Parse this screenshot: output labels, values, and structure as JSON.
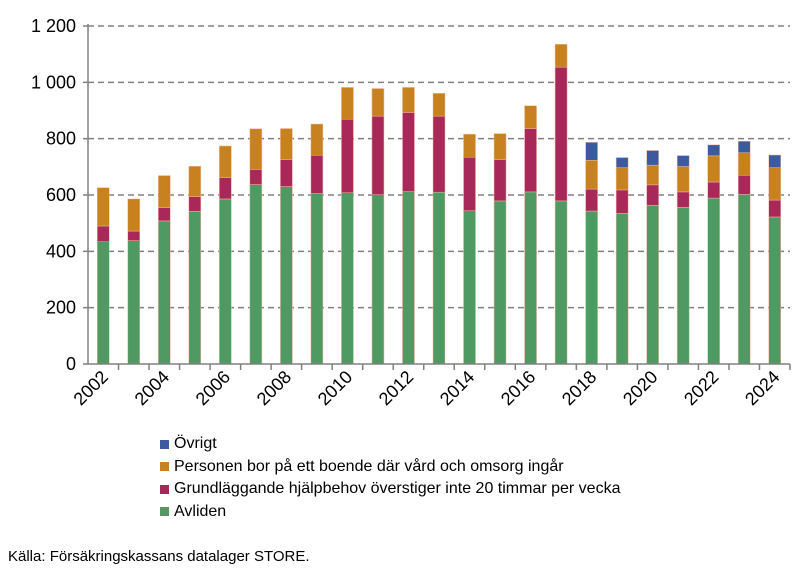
{
  "chart_data": {
    "type": "bar",
    "stacked": true,
    "categories": [
      "2002",
      "2003",
      "2004",
      "2005",
      "2006",
      "2007",
      "2008",
      "2009",
      "2010",
      "2011",
      "2012",
      "2013",
      "2014",
      "2015",
      "2016",
      "2017",
      "2018",
      "2019",
      "2020",
      "2021",
      "2022",
      "2023",
      "2024"
    ],
    "visible_xtick_labels": [
      "2002",
      "2004",
      "2006",
      "2008",
      "2010",
      "2012",
      "2014",
      "2016",
      "2018",
      "2020",
      "2022",
      "2024"
    ],
    "series": [
      {
        "name": "Avliden",
        "color": "#4f9a62",
        "values": [
          434,
          438,
          508,
          542,
          586,
          637,
          630,
          605,
          608,
          601,
          612,
          610,
          544,
          579,
          611,
          579,
          543,
          535,
          563,
          556,
          589,
          602,
          522
        ]
      },
      {
        "name": "Grundläggande hjälpbehov överstiger inte 20 timmar per vecka",
        "color": "#a8285a",
        "values": [
          56,
          34,
          47,
          52,
          76,
          54,
          96,
          136,
          261,
          279,
          281,
          270,
          190,
          147,
          225,
          475,
          78,
          83,
          73,
          55,
          57,
          68,
          60
        ]
      },
      {
        "name": "Personen bor på ett boende där vård och omsorg ingår",
        "color": "#c7821f",
        "values": [
          136,
          114,
          114,
          108,
          112,
          144,
          110,
          111,
          113,
          98,
          89,
          81,
          82,
          92,
          81,
          81,
          102,
          79,
          70,
          90,
          93,
          80,
          115
        ]
      },
      {
        "name": "Övrigt",
        "color": "#3b5b9e",
        "values": [
          0,
          0,
          0,
          0,
          0,
          0,
          0,
          0,
          0,
          0,
          0,
          0,
          0,
          0,
          0,
          0,
          64,
          36,
          52,
          39,
          39,
          41,
          45
        ]
      }
    ],
    "ylim": [
      0,
      1200
    ],
    "yticks": [
      0,
      200,
      400,
      600,
      800,
      1000,
      1200
    ],
    "ytick_labels": [
      "0",
      "200",
      "400",
      "600",
      "800",
      "1 000",
      "1 200"
    ],
    "grid": "horizontal dashed",
    "legend_placement": "bottom",
    "legend_order": [
      "Övrigt",
      "Personen bor på ett boende där vård och omsorg ingår",
      "Grundläggande hjälpbehov överstiger inte 20 timmar per vecka",
      "Avliden"
    ],
    "xlabel": "",
    "ylabel": "",
    "title": ""
  },
  "source": "Källa: Försäkringskassans datalager STORE."
}
